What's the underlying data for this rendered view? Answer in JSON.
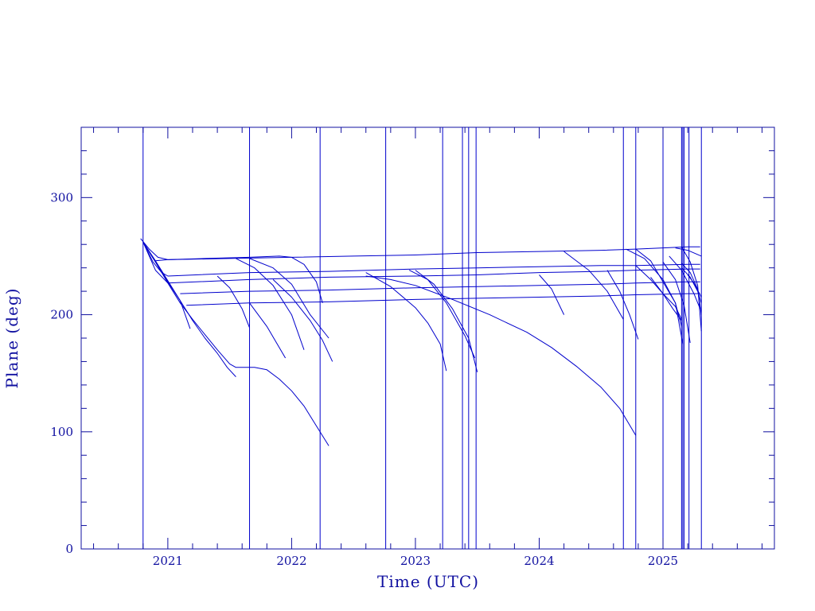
{
  "chart_data": {
    "type": "line",
    "xlabel": "Time (UTC)",
    "ylabel": "Plane (deg)",
    "xlim": [
      2020.3,
      2025.9
    ],
    "ylim": [
      0,
      360
    ],
    "x_ticks": [
      {
        "value": 2021,
        "label": "2021"
      },
      {
        "value": 2022,
        "label": "2022"
      },
      {
        "value": 2023,
        "label": "2023"
      },
      {
        "value": 2024,
        "label": "2024"
      },
      {
        "value": 2025,
        "label": "2025"
      }
    ],
    "y_ticks": [
      {
        "value": 0,
        "label": "0"
      },
      {
        "value": 100,
        "label": "100"
      },
      {
        "value": 200,
        "label": "200"
      },
      {
        "value": 300,
        "label": "300"
      }
    ],
    "line_color": "#0000cc",
    "grid": false,
    "vertical_lines": [
      2020.8,
      2021.66,
      2022.23,
      2022.76,
      2023.22,
      2023.38,
      2023.43,
      2023.49,
      2024.68,
      2024.78,
      2025.0,
      2025.15,
      2025.16,
      2025.17,
      2025.21,
      2025.31
    ],
    "series": [
      {
        "x": [
          2020.78,
          2020.85,
          2020.92,
          2021.0,
          2021.3,
          2021.66,
          2021.9,
          2022.0,
          2022.1,
          2022.2,
          2022.25
        ],
        "y": [
          265,
          256,
          249,
          247,
          248,
          249,
          250,
          249,
          243,
          228,
          210
        ]
      },
      {
        "x": [
          2020.8,
          2020.9,
          2021.0,
          2021.1,
          2021.18
        ],
        "y": [
          262,
          245,
          228,
          212,
          188
        ]
      },
      {
        "x": [
          2020.8,
          2020.9,
          2021.0,
          2021.1,
          2021.2,
          2021.3,
          2021.4,
          2021.5,
          2021.55,
          2021.6,
          2021.7,
          2021.8,
          2021.9,
          2022.0,
          2022.1,
          2022.2,
          2022.3
        ],
        "y": [
          262,
          245,
          227,
          210,
          196,
          183,
          170,
          158,
          155,
          155,
          155,
          153,
          145,
          135,
          122,
          105,
          88
        ]
      },
      {
        "x": [
          2020.8,
          2020.9,
          2021.0,
          2021.1,
          2021.2,
          2021.3,
          2021.4,
          2021.48,
          2021.55
        ],
        "y": [
          262,
          246,
          229,
          212,
          195,
          180,
          167,
          155,
          147
        ]
      },
      {
        "x": [
          2020.8,
          2020.88,
          2020.95,
          2021.0,
          2021.66,
          2022.3,
          2023.0,
          2023.5,
          2024.0,
          2024.5,
          2024.78,
          2025.2,
          2025.3
        ],
        "y": [
          262,
          245,
          236,
          233,
          236,
          237,
          239,
          240,
          241,
          242,
          242,
          243,
          243
        ]
      },
      {
        "x": [
          2020.8,
          2020.9,
          2021.0,
          2021.66,
          2022.3,
          2023.0,
          2023.5,
          2024.0,
          2024.5,
          2024.78,
          2025.2,
          2025.3
        ],
        "y": [
          262,
          238,
          227,
          230,
          232,
          233,
          234,
          236,
          237,
          238,
          239,
          239
        ]
      },
      {
        "x": [
          2021.1,
          2021.66,
          2022.3,
          2023.0,
          2023.5,
          2024.0,
          2024.5,
          2024.78,
          2025.2,
          2025.3
        ],
        "y": [
          218,
          220,
          221,
          223,
          224,
          225,
          226,
          227,
          228,
          228
        ]
      },
      {
        "x": [
          2021.15,
          2021.66,
          2022.3,
          2023.0,
          2023.5,
          2024.0,
          2024.5,
          2024.78,
          2025.2,
          2025.3
        ],
        "y": [
          208,
          210,
          211,
          213,
          214,
          215,
          216,
          217,
          218,
          218
        ]
      },
      {
        "x": [
          2020.9,
          2021.0,
          2021.5,
          2022.0,
          2022.5,
          2023.0,
          2023.5,
          2024.0,
          2024.5,
          2024.78,
          2025.0,
          2025.2,
          2025.3
        ],
        "y": [
          246,
          247,
          248,
          249,
          250,
          251,
          253,
          254,
          255,
          256,
          257,
          258,
          258
        ]
      },
      {
        "x": [
          2021.4,
          2021.5,
          2021.6,
          2021.66
        ],
        "y": [
          233,
          223,
          205,
          189
        ]
      },
      {
        "x": [
          2021.66,
          2021.8,
          2021.95
        ],
        "y": [
          210,
          190,
          163
        ]
      },
      {
        "x": [
          2021.55,
          2021.7,
          2021.85,
          2022.0,
          2022.1
        ],
        "y": [
          248,
          240,
          225,
          200,
          170
        ]
      },
      {
        "x": [
          2021.66,
          2021.85,
          2022.0,
          2022.15,
          2022.3
        ],
        "y": [
          248,
          240,
          226,
          200,
          180
        ]
      },
      {
        "x": [
          2021.85,
          2022.0,
          2022.15,
          2022.25,
          2022.33
        ],
        "y": [
          230,
          215,
          195,
          178,
          160
        ]
      },
      {
        "x": [
          2022.6,
          2022.8,
          2023.0,
          2023.1,
          2023.2,
          2023.25
        ],
        "y": [
          236,
          224,
          206,
          193,
          175,
          152
        ]
      },
      {
        "x": [
          2022.6,
          2022.8,
          2023.0,
          2023.3,
          2023.6,
          2023.9,
          2024.1,
          2024.3,
          2024.5,
          2024.65,
          2024.78
        ],
        "y": [
          233,
          230,
          225,
          213,
          200,
          185,
          172,
          156,
          138,
          120,
          97
        ]
      },
      {
        "x": [
          2022.95,
          2023.1,
          2023.25,
          2023.4,
          2023.48
        ],
        "y": [
          238,
          230,
          210,
          182,
          163
        ]
      },
      {
        "x": [
          2023.0,
          2023.15,
          2023.3,
          2023.43,
          2023.5
        ],
        "y": [
          238,
          226,
          205,
          180,
          151
        ]
      },
      {
        "x": [
          2024.0,
          2024.1,
          2024.2
        ],
        "y": [
          234,
          222,
          200
        ]
      },
      {
        "x": [
          2024.2,
          2024.4,
          2024.55,
          2024.68
        ],
        "y": [
          254,
          238,
          220,
          196
        ]
      },
      {
        "x": [
          2024.55,
          2024.65,
          2024.73,
          2024.8
        ],
        "y": [
          238,
          220,
          200,
          179
        ]
      },
      {
        "x": [
          2024.7,
          2024.85,
          2025.0,
          2025.1,
          2025.16
        ],
        "y": [
          256,
          248,
          230,
          210,
          175
        ]
      },
      {
        "x": [
          2024.78,
          2024.9,
          2025.0,
          2025.1,
          2025.15
        ],
        "y": [
          256,
          246,
          228,
          210,
          190
        ]
      },
      {
        "x": [
          2024.78,
          2024.9,
          2025.0,
          2025.08,
          2025.15
        ],
        "y": [
          242,
          230,
          218,
          205,
          195
        ]
      },
      {
        "x": [
          2024.9,
          2025.0,
          2025.1,
          2025.15
        ],
        "y": [
          232,
          218,
          207,
          196
        ]
      },
      {
        "x": [
          2025.0,
          2025.1,
          2025.17,
          2025.22
        ],
        "y": [
          245,
          230,
          208,
          176
        ]
      },
      {
        "x": [
          2025.05,
          2025.15,
          2025.25,
          2025.3
        ],
        "y": [
          250,
          238,
          218,
          205
        ]
      },
      {
        "x": [
          2025.15,
          2025.22,
          2025.28,
          2025.31
        ],
        "y": [
          258,
          245,
          225,
          186
        ]
      },
      {
        "x": [
          2025.15,
          2025.22,
          2025.28,
          2025.31
        ],
        "y": [
          244,
          236,
          222,
          200
        ]
      },
      {
        "x": [
          2025.15,
          2025.22,
          2025.28,
          2025.31
        ],
        "y": [
          240,
          232,
          220,
          210
        ]
      },
      {
        "x": [
          2025.1,
          2025.2,
          2025.31
        ],
        "y": [
          257,
          255,
          250
        ]
      },
      {
        "x": [
          2025.2,
          2025.25,
          2025.31
        ],
        "y": [
          234,
          227,
          215
        ]
      }
    ]
  }
}
